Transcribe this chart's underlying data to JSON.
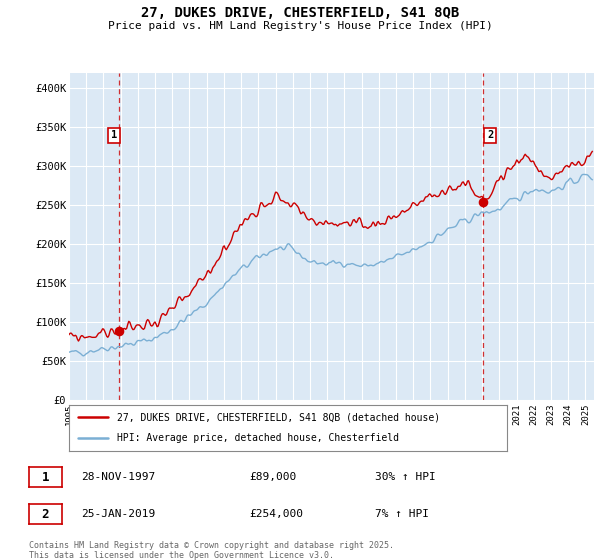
{
  "title_line1": "27, DUKES DRIVE, CHESTERFIELD, S41 8QB",
  "title_line2": "Price paid vs. HM Land Registry's House Price Index (HPI)",
  "ylabel_ticks": [
    "£0",
    "£50K",
    "£100K",
    "£150K",
    "£200K",
    "£250K",
    "£300K",
    "£350K",
    "£400K"
  ],
  "ytick_values": [
    0,
    50000,
    100000,
    150000,
    200000,
    250000,
    300000,
    350000,
    400000
  ],
  "ylim": [
    0,
    420000
  ],
  "xlim_start": 1995.0,
  "xlim_end": 2025.5,
  "xticks": [
    1995,
    1996,
    1997,
    1998,
    1999,
    2000,
    2001,
    2002,
    2003,
    2004,
    2005,
    2006,
    2007,
    2008,
    2009,
    2010,
    2011,
    2012,
    2013,
    2014,
    2015,
    2016,
    2017,
    2018,
    2019,
    2020,
    2021,
    2022,
    2023,
    2024,
    2025
  ],
  "sale1_x": 1997.91,
  "sale1_y": 89000,
  "sale1_label": "1",
  "sale1_date": "28-NOV-1997",
  "sale1_price": "£89,000",
  "sale1_hpi": "30% ↑ HPI",
  "sale2_x": 2019.07,
  "sale2_y": 254000,
  "sale2_label": "2",
  "sale2_date": "25-JAN-2019",
  "sale2_price": "£254,000",
  "sale2_hpi": "7% ↑ HPI",
  "red_line_color": "#cc0000",
  "blue_line_color": "#7bafd4",
  "plot_bg_color": "#dce9f5",
  "dot_color": "#cc0000",
  "vline_color": "#cc0000",
  "legend_label_red": "27, DUKES DRIVE, CHESTERFIELD, S41 8QB (detached house)",
  "legend_label_blue": "HPI: Average price, detached house, Chesterfield",
  "footnote": "Contains HM Land Registry data © Crown copyright and database right 2025.\nThis data is licensed under the Open Government Licence v3.0.",
  "background_color": "#ffffff",
  "grid_color": "#ffffff"
}
